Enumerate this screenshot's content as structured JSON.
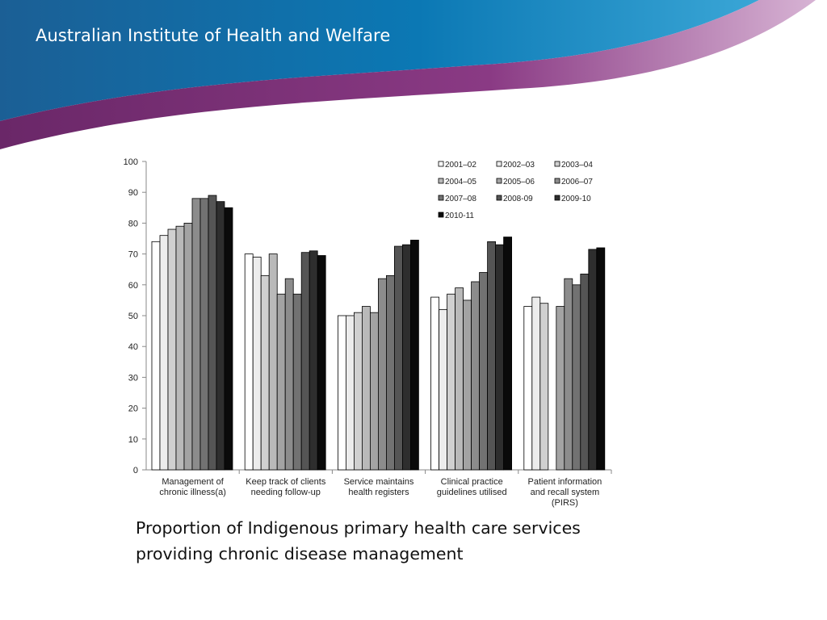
{
  "header": {
    "org_title": "Australian Institute of Health and Welfare"
  },
  "caption": "Proportion of Indigenous primary health care services providing chronic disease management",
  "colors": {
    "banner_blue": "#0f6fa8",
    "banner_purple": "#7a2f7a"
  },
  "chart_data": {
    "type": "bar",
    "title": "",
    "xlabel": "",
    "ylabel": "",
    "ylim": [
      0,
      100
    ],
    "yticks": [
      0,
      10,
      20,
      30,
      40,
      50,
      60,
      70,
      80,
      90,
      100
    ],
    "grid": false,
    "legend_position": "top-right",
    "categories": [
      [
        "Management of",
        "chronic illness(a)"
      ],
      [
        "Keep track of clients",
        "needing follow-up"
      ],
      [
        "Service maintains",
        "health registers"
      ],
      [
        "Clinical practice",
        "guidelines utilised"
      ],
      [
        "Patient information",
        "and recall system",
        "(PIRS)"
      ]
    ],
    "series": [
      {
        "name": "2001–02",
        "color": "#ffffff",
        "values": [
          74,
          70,
          50,
          56,
          53
        ]
      },
      {
        "name": "2002–03",
        "color": "#ececec",
        "values": [
          76,
          69,
          50,
          52,
          56
        ]
      },
      {
        "name": "2003–04",
        "color": "#d0d0d0",
        "values": [
          78,
          63,
          51,
          57,
          54
        ]
      },
      {
        "name": "2004–05",
        "color": "#b9b9b9",
        "values": [
          79,
          70,
          53,
          59,
          null
        ]
      },
      {
        "name": "2005–06",
        "color": "#a3a3a3",
        "values": [
          80,
          57,
          51,
          55,
          53
        ]
      },
      {
        "name": "2006–07",
        "color": "#8c8c8c",
        "values": [
          88,
          62,
          62,
          61,
          62
        ]
      },
      {
        "name": "2007–08",
        "color": "#727272",
        "values": [
          88,
          57,
          63,
          64,
          60
        ]
      },
      {
        "name": "2008-09",
        "color": "#555555",
        "values": [
          89,
          70.5,
          72.5,
          74,
          63.5
        ]
      },
      {
        "name": "2009-10",
        "color": "#2e2e2e",
        "values": [
          87,
          71,
          73,
          73,
          71.5
        ]
      },
      {
        "name": "2010-11",
        "color": "#0a0a0a",
        "values": [
          85,
          69.5,
          74.5,
          75.5,
          72
        ]
      }
    ]
  }
}
